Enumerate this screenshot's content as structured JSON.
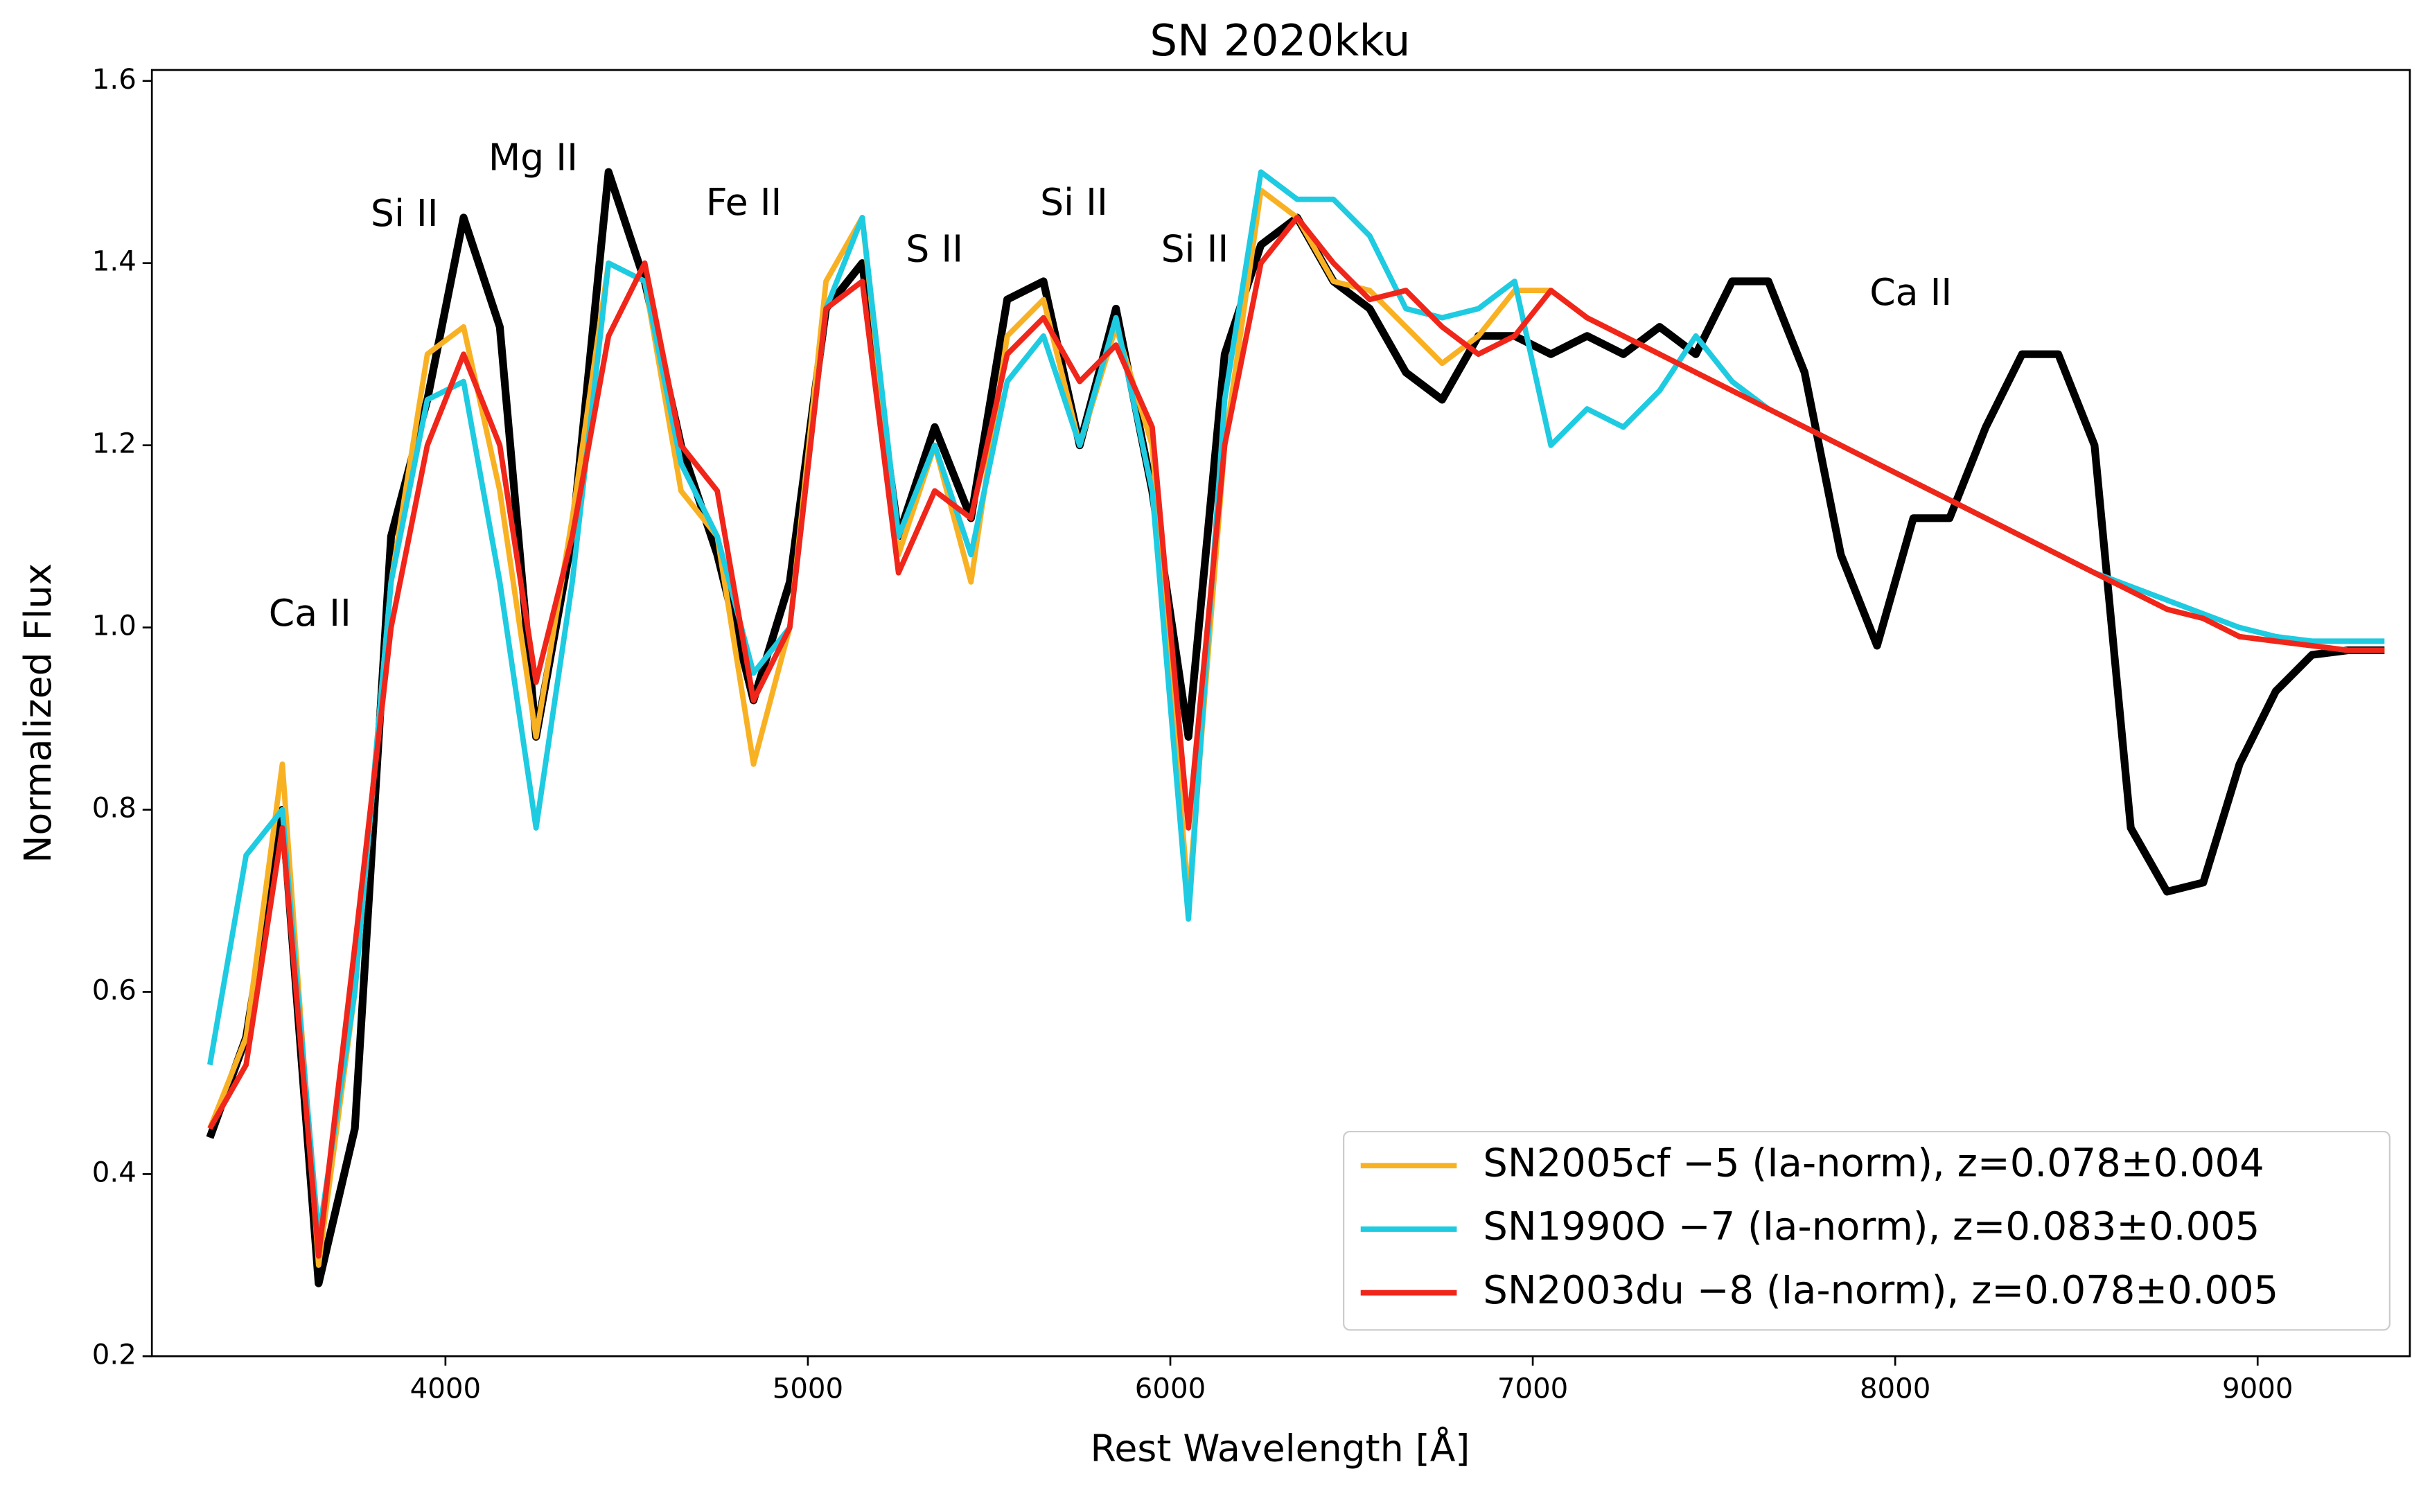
{
  "chart_data": {
    "type": "line",
    "title": "SN 2020kku",
    "xlabel": "Rest Wavelength [Å]",
    "ylabel": "Normalized Flux",
    "xlim": [
      3190,
      9420
    ],
    "ylim": [
      0.2,
      1.612
    ],
    "xticks": [
      4000,
      5000,
      6000,
      7000,
      8000,
      9000
    ],
    "yticks": [
      0.2,
      0.4,
      0.6,
      0.8,
      {
        "value": 1.0,
        "label": "1.0"
      },
      1.2,
      1.4,
      1.6
    ],
    "grid": false,
    "legend": "lower right",
    "annotations": [
      "Ca II",
      "Si II",
      "Mg II",
      "Fe II",
      "S II",
      "Si II",
      "Si II",
      "Ca II"
    ],
    "x": [
      3350,
      3450,
      3550,
      3650,
      3750,
      3850,
      3950,
      4050,
      4150,
      4250,
      4350,
      4450,
      4550,
      4650,
      4750,
      4850,
      4950,
      5050,
      5150,
      5250,
      5350,
      5450,
      5550,
      5650,
      5750,
      5850,
      5950,
      6050,
      6150,
      6250,
      6350,
      6450,
      6550,
      6650,
      6750,
      6850,
      6950,
      7050,
      7150,
      7250,
      7350,
      7450,
      7550,
      7650,
      7750,
      7850,
      7950,
      8050,
      8150,
      8250,
      8350,
      8450,
      8550,
      8650,
      8750,
      8850,
      8950,
      9050,
      9150,
      9250,
      9350
    ],
    "series": [
      {
        "color": "#000000",
        "values": [
          0.44,
          0.55,
          0.8,
          0.28,
          0.45,
          1.1,
          1.25,
          1.45,
          1.33,
          0.88,
          1.1,
          1.5,
          1.38,
          1.2,
          1.08,
          0.92,
          1.05,
          1.35,
          1.4,
          1.1,
          1.22,
          1.12,
          1.36,
          1.38,
          1.2,
          1.35,
          1.15,
          0.88,
          1.3,
          1.42,
          1.45,
          1.38,
          1.35,
          1.28,
          1.25,
          1.32,
          1.32,
          1.3,
          1.32,
          1.3,
          1.33,
          1.3,
          1.38,
          1.38,
          1.28,
          1.08,
          0.98,
          1.12,
          1.12,
          1.22,
          1.3,
          1.3,
          1.2,
          0.78,
          0.71,
          0.72,
          0.85,
          0.93,
          0.97,
          0.975,
          0.975
        ]
      },
      {
        "name": "SN2005cf −5 (Ia-norm), z=0.078±0.004",
        "color": "#f9b124",
        "values": [
          0.45,
          0.55,
          0.85,
          0.3,
          0.6,
          1.05,
          1.3,
          1.33,
          1.15,
          0.88,
          1.12,
          1.4,
          1.38,
          1.15,
          1.1,
          0.85,
          1.0,
          1.38,
          1.45,
          1.08,
          1.2,
          1.05,
          1.32,
          1.36,
          1.2,
          1.33,
          1.2,
          0.7,
          1.2,
          1.48,
          1.45,
          1.38,
          1.37,
          1.33,
          1.29,
          1.32,
          1.37,
          1.37,
          1.34,
          1.32,
          1.3,
          1.28,
          1.26,
          1.24,
          1.22,
          1.2,
          1.18,
          1.16,
          1.14,
          1.12,
          1.1,
          1.08,
          1.06,
          1.04,
          1.02,
          1.01,
          0.99,
          0.985,
          0.98,
          0.975,
          0.975
        ]
      },
      {
        "name": "SN1990O −7 (Ia-norm), z=0.083±0.005",
        "color": "#1ecbe1",
        "values": [
          0.52,
          0.75,
          0.8,
          0.33,
          0.6,
          1.05,
          1.25,
          1.27,
          1.05,
          0.78,
          1.05,
          1.4,
          1.38,
          1.18,
          1.1,
          0.95,
          1.0,
          1.35,
          1.45,
          1.1,
          1.2,
          1.08,
          1.27,
          1.32,
          1.2,
          1.34,
          1.15,
          0.68,
          1.25,
          1.5,
          1.47,
          1.47,
          1.43,
          1.35,
          1.34,
          1.35,
          1.38,
          1.2,
          1.24,
          1.22,
          1.26,
          1.32,
          1.27,
          1.24,
          1.22,
          1.2,
          1.18,
          1.16,
          1.14,
          1.12,
          1.1,
          1.08,
          1.06,
          1.045,
          1.03,
          1.015,
          1.0,
          0.99,
          0.985,
          0.985,
          0.985
        ]
      },
      {
        "name": "SN2003du −8 (Ia-norm), z=0.078±0.005",
        "color": "#f0261a",
        "values": [
          0.45,
          0.52,
          0.78,
          0.31,
          0.65,
          1.0,
          1.2,
          1.3,
          1.2,
          0.94,
          1.1,
          1.32,
          1.4,
          1.2,
          1.15,
          0.92,
          1.0,
          1.35,
          1.38,
          1.06,
          1.15,
          1.12,
          1.3,
          1.34,
          1.27,
          1.31,
          1.22,
          0.78,
          1.2,
          1.4,
          1.45,
          1.4,
          1.36,
          1.37,
          1.33,
          1.3,
          1.32,
          1.37,
          1.34,
          1.32,
          1.3,
          1.28,
          1.26,
          1.24,
          1.22,
          1.2,
          1.18,
          1.16,
          1.14,
          1.12,
          1.1,
          1.08,
          1.06,
          1.04,
          1.02,
          1.01,
          0.99,
          0.985,
          0.98,
          0.975,
          0.975
        ]
      }
    ]
  }
}
